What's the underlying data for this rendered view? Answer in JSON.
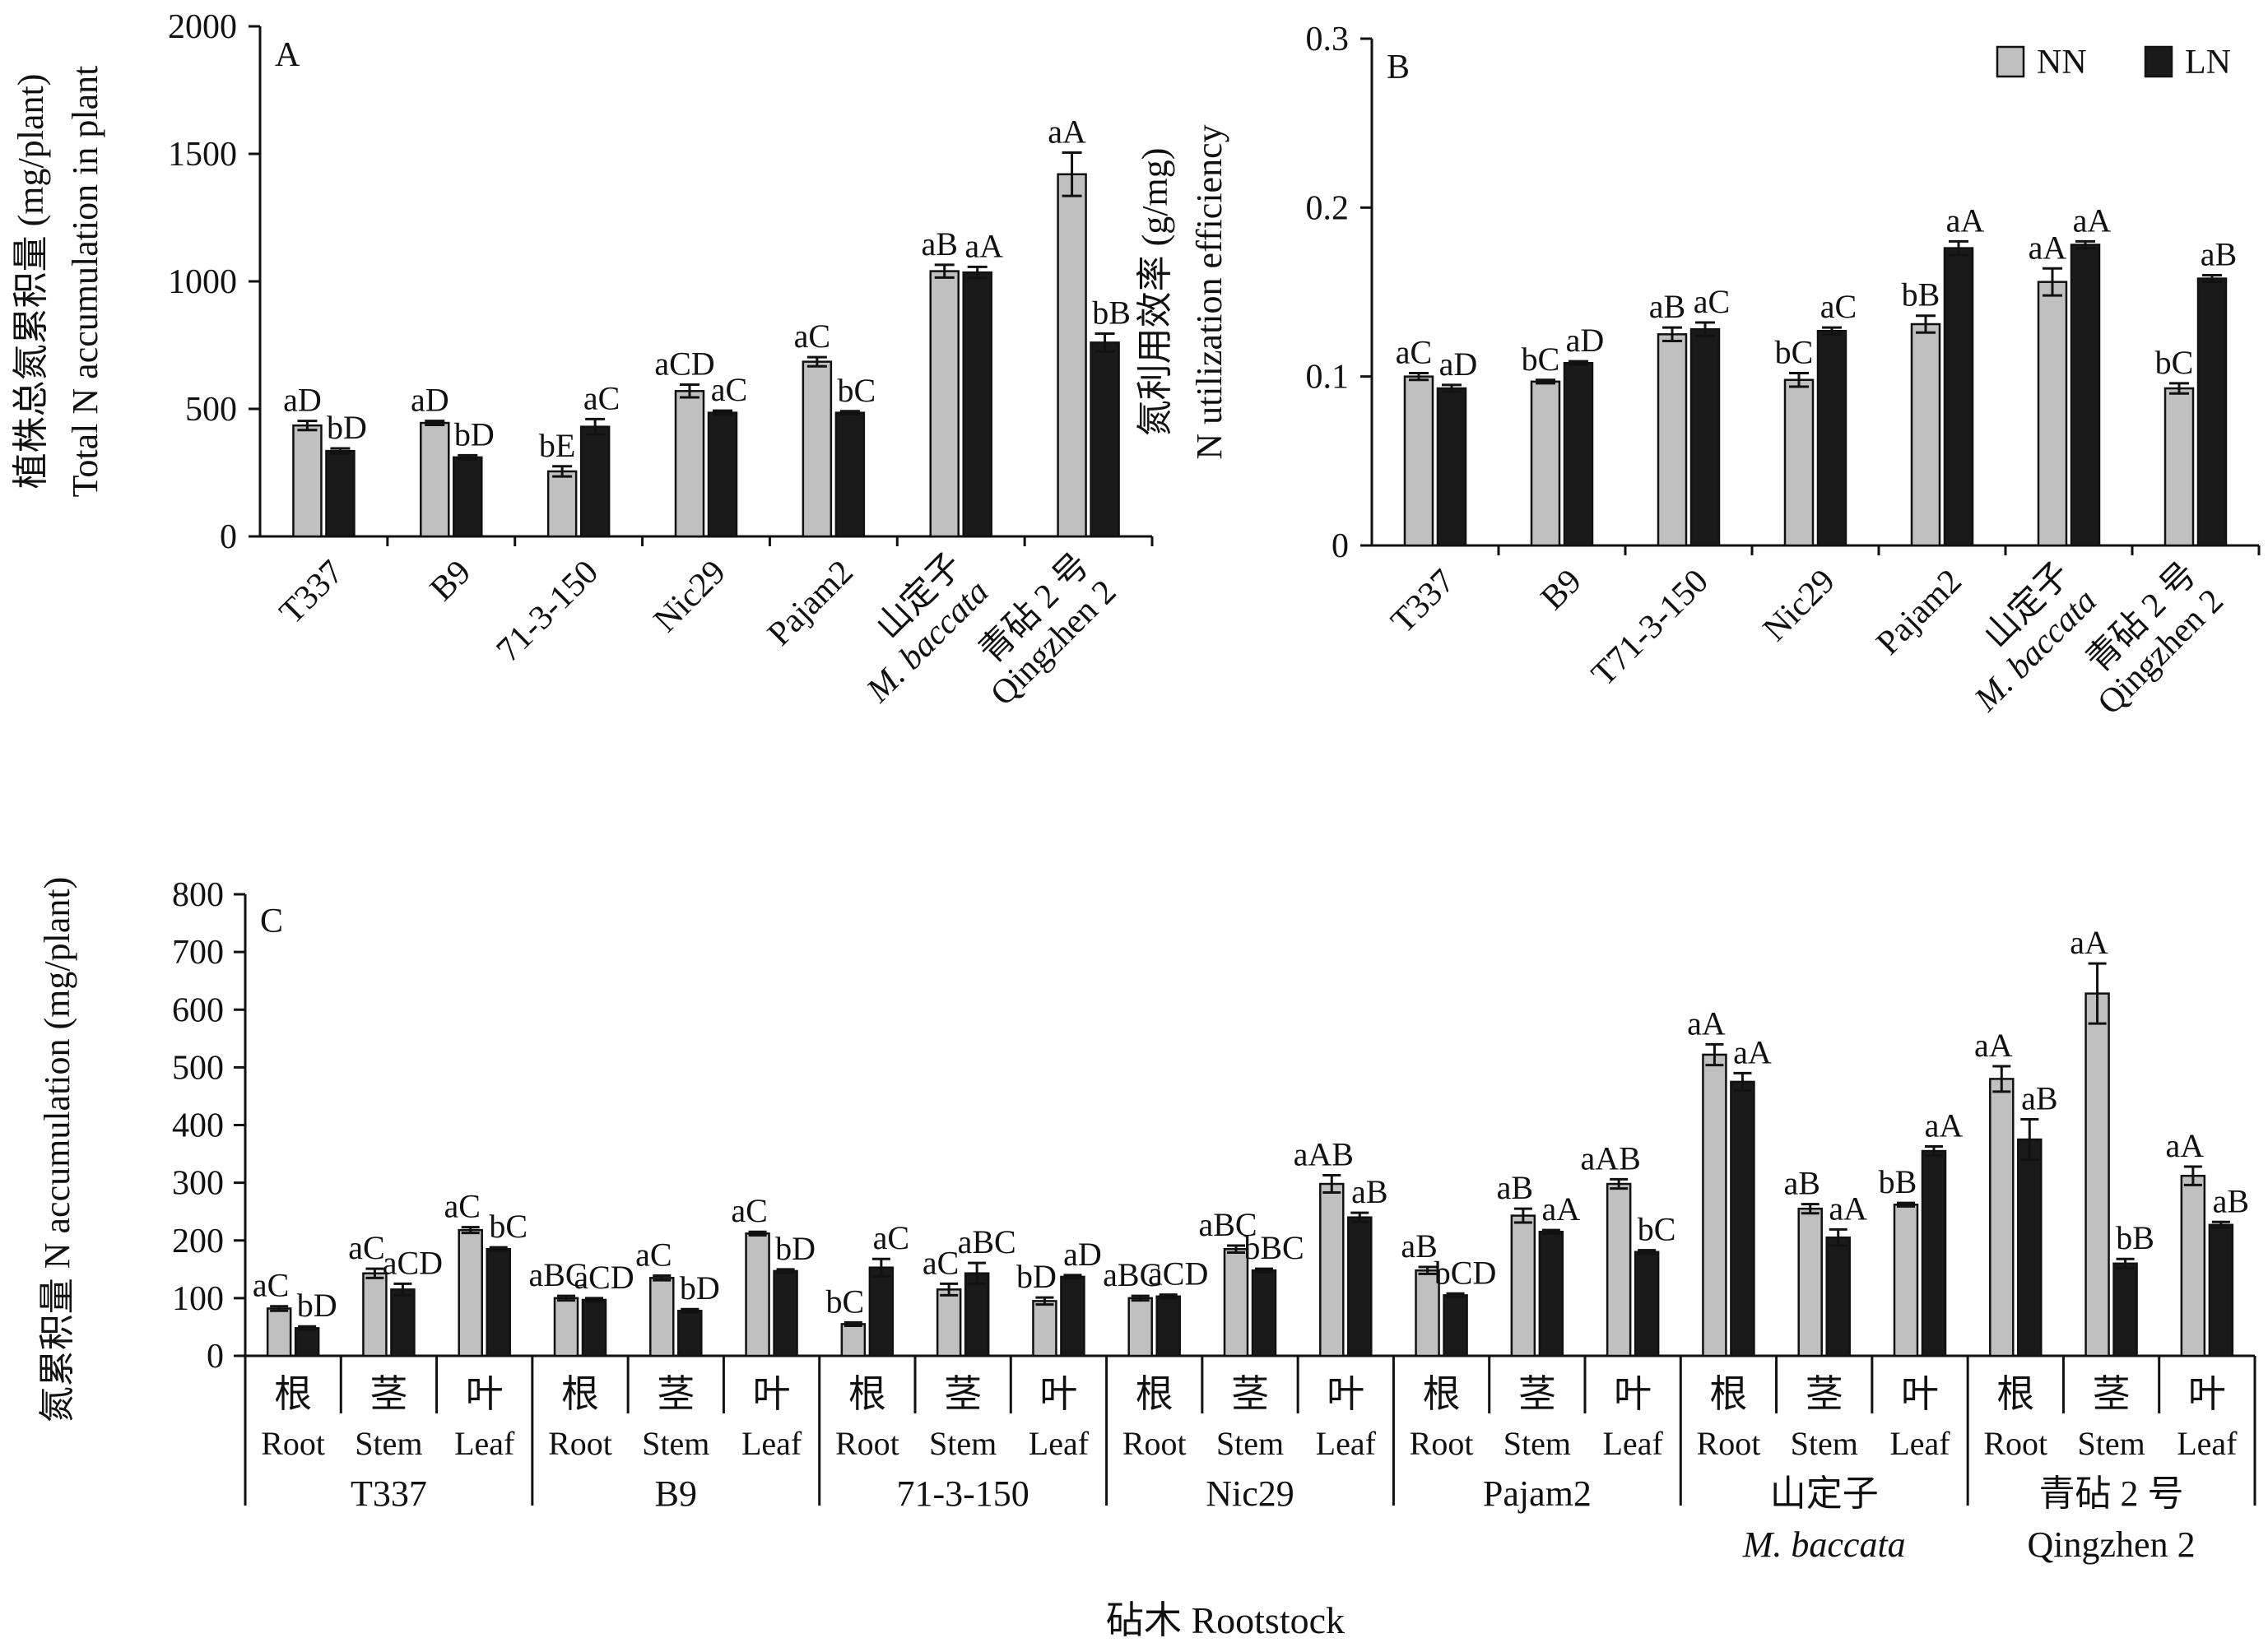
{
  "figure_label": "",
  "colors": {
    "NN": "#c0c0c0",
    "LN": "#1a1a1a",
    "axis": "#111111",
    "stroke": "#111111"
  },
  "chart_data": [
    {
      "panel": "A",
      "type": "bar",
      "title": "",
      "ylabel_cn": "植株总氮累积量 (mg/plant)",
      "ylabel_en": "Total N accumulation in plant",
      "xlabel": "",
      "ylim": [
        0,
        2000
      ],
      "yticks": [
        "0",
        "500",
        "1000",
        "1500",
        "2000"
      ],
      "categories": [
        [
          "T337"
        ],
        [
          "B9"
        ],
        [
          "71-3-150"
        ],
        [
          "Nic29"
        ],
        [
          "Pajam2"
        ],
        [
          "山定子",
          "M. baccata"
        ],
        [
          "青砧 2 号",
          "Qingzhen 2"
        ]
      ],
      "series": [
        {
          "name": "NN",
          "values": [
            435,
            445,
            255,
            570,
            685,
            1040,
            1420
          ],
          "errors": [
            18,
            8,
            20,
            25,
            18,
            25,
            85
          ],
          "letters": [
            "aD",
            "aD",
            "bE",
            "aCD",
            "aC",
            "aB",
            "aA"
          ]
        },
        {
          "name": "LN",
          "values": [
            335,
            310,
            430,
            485,
            485,
            1035,
            760
          ],
          "errors": [
            10,
            8,
            30,
            8,
            6,
            22,
            35
          ],
          "letters": [
            "bD",
            "bD",
            "aC",
            "aC",
            "bC",
            "aA",
            "bB"
          ]
        }
      ]
    },
    {
      "panel": "B",
      "type": "bar",
      "title": "",
      "ylabel_cn": "氮利用效率 (g/mg)",
      "ylabel_en": "N utilization efficiency",
      "xlabel": "",
      "ylim": [
        0,
        0.3
      ],
      "yticks": [
        "0",
        "0.1",
        "0.2",
        "0.3"
      ],
      "legend": {
        "position": "top-right",
        "entries": [
          "NN",
          "LN"
        ]
      },
      "categories": [
        [
          "T337"
        ],
        [
          "B9"
        ],
        [
          "T71-3-150"
        ],
        [
          "Nic29"
        ],
        [
          "Pajam2"
        ],
        [
          "山定子",
          "M. baccata"
        ],
        [
          "青砧 2 号",
          "Qingzhen 2"
        ]
      ],
      "series": [
        {
          "name": "NN",
          "values": [
            0.1,
            0.097,
            0.125,
            0.098,
            0.131,
            0.156,
            0.093
          ],
          "errors": [
            0.002,
            0.001,
            0.004,
            0.004,
            0.005,
            0.008,
            0.003
          ],
          "letters": [
            "aC",
            "bC",
            "aB",
            "bC",
            "bB",
            "aA",
            "bC"
          ]
        },
        {
          "name": "LN",
          "values": [
            0.093,
            0.108,
            0.128,
            0.127,
            0.176,
            0.178,
            0.158
          ],
          "errors": [
            0.002,
            0.001,
            0.004,
            0.002,
            0.004,
            0.002,
            0.002
          ],
          "letters": [
            "aD",
            "aD",
            "aC",
            "aC",
            "aA",
            "aA",
            "aB"
          ]
        }
      ]
    },
    {
      "panel": "C",
      "type": "bar",
      "title": "",
      "ylabel": "氮累积量 N accumulation  (mg/plant)",
      "xlabel": "砧木 Rootstock",
      "ylim": [
        0,
        800
      ],
      "yticks": [
        "0",
        "100",
        "200",
        "300",
        "400",
        "500",
        "600",
        "700",
        "800"
      ],
      "organs": [
        {
          "cn": "根",
          "en": "Root"
        },
        {
          "cn": "茎",
          "en": "Stem"
        },
        {
          "cn": "叶",
          "en": "Leaf"
        }
      ],
      "groups": [
        {
          "name": [
            "T337"
          ],
          "NN": [
            82,
            143,
            218
          ],
          "LN": [
            48,
            115,
            185
          ],
          "NN_err": [
            4,
            8,
            5
          ],
          "LN_err": [
            3,
            10,
            3
          ],
          "NN_letters": [
            "aC",
            "aC",
            "aC"
          ],
          "LN_letters": [
            "bD",
            "aCD",
            "bC"
          ]
        },
        {
          "name": [
            "B9"
          ],
          "NN": [
            100,
            135,
            212
          ],
          "LN": [
            97,
            78,
            147
          ],
          "NN_err": [
            4,
            4,
            3
          ],
          "LN_err": [
            3,
            3,
            3
          ],
          "NN_letters": [
            "aBC",
            "aC",
            "aC"
          ],
          "LN_letters": [
            "aCD",
            "bD",
            "bD"
          ]
        },
        {
          "name": [
            "71-3-150"
          ],
          "NN": [
            55,
            115,
            95
          ],
          "LN": [
            153,
            143,
            137
          ],
          "NN_err": [
            3,
            10,
            6
          ],
          "LN_err": [
            15,
            18,
            3
          ],
          "NN_letters": [
            "bC",
            "aC",
            "bD"
          ],
          "LN_letters": [
            "aC",
            "aBC",
            "aD"
          ]
        },
        {
          "name": [
            "Nic29"
          ],
          "NN": [
            100,
            185,
            298
          ],
          "LN": [
            103,
            148,
            240
          ],
          "NN_err": [
            4,
            6,
            15
          ],
          "LN_err": [
            3,
            3,
            8
          ],
          "NN_letters": [
            "aBC",
            "aBC",
            "aAB"
          ],
          "LN_letters": [
            "aCD",
            "bBC",
            "aB"
          ]
        },
        {
          "name": [
            "Pajam2"
          ],
          "NN": [
            148,
            243,
            298
          ],
          "LN": [
            105,
            215,
            180
          ],
          "NN_err": [
            6,
            12,
            8
          ],
          "LN_err": [
            3,
            3,
            3
          ],
          "NN_letters": [
            "aB",
            "aB",
            "aAB"
          ],
          "LN_letters": [
            "bCD",
            "aA",
            "bC"
          ]
        },
        {
          "name": [
            "山定子",
            "M. baccata"
          ],
          "NN": [
            522,
            255,
            262
          ],
          "LN": [
            475,
            205,
            355
          ],
          "NN_err": [
            18,
            8,
            3
          ],
          "LN_err": [
            15,
            14,
            8
          ],
          "NN_letters": [
            "aA",
            "aB",
            "bB"
          ],
          "LN_letters": [
            "aA",
            "aA",
            "aA"
          ]
        },
        {
          "name": [
            "青砧 2 号",
            "Qingzhen 2"
          ],
          "NN": [
            480,
            628,
            312
          ],
          "LN": [
            375,
            160,
            227
          ],
          "NN_err": [
            22,
            52,
            16
          ],
          "LN_err": [
            35,
            8,
            5
          ],
          "NN_letters": [
            "aA",
            "aA",
            "aA"
          ],
          "LN_letters": [
            "aB",
            "bB",
            "aB"
          ]
        }
      ]
    }
  ]
}
